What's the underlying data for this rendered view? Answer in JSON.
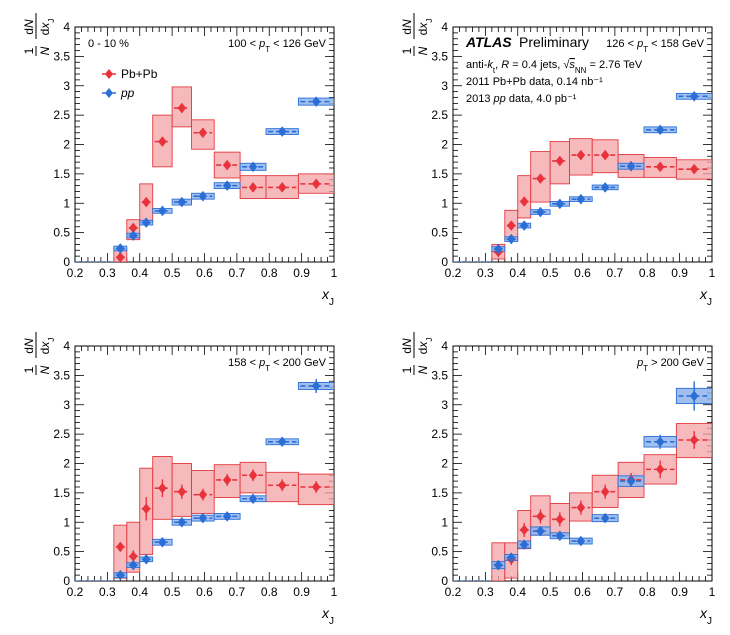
{
  "colors": {
    "pbpb": "#e8323c",
    "pbpb_box_fill": "#f4a3a6",
    "pbpb_box_stroke": "#e23a40",
    "pp": "#2b6fd6",
    "pp_box_fill": "#8fb4ec",
    "pp_box_stroke": "#2b6fd6"
  },
  "chart_data": [
    {
      "type": "scatter",
      "panel": "top-left",
      "xlabel": "x_J",
      "ylabel": "1/N dN/dx_J",
      "xlim": [
        0.2,
        1.0
      ],
      "ylim": [
        0,
        4
      ],
      "xticks": [
        "0.2",
        "0.3",
        "0.4",
        "0.5",
        "0.6",
        "0.7",
        "0.8",
        "0.9",
        "1"
      ],
      "yticks": [
        "0",
        "0.5",
        "1",
        "1.5",
        "2",
        "2.5",
        "3",
        "3.5",
        "4"
      ],
      "label_left": "0 - 10 %",
      "label_right": "100 < p_T < 126 GeV",
      "legend": [
        "Pb+Pb",
        "pp"
      ],
      "legend_position": "upper-left",
      "bin_edges": [
        0.32,
        0.36,
        0.4,
        0.44,
        0.5,
        0.56,
        0.63,
        0.71,
        0.79,
        0.89,
        1.0
      ],
      "series": [
        {
          "name": "Pb+Pb",
          "x": [
            0.34,
            0.38,
            0.42,
            0.47,
            0.53,
            0.595,
            0.67,
            0.75,
            0.84,
            0.945
          ],
          "y": [
            0.08,
            0.58,
            1.02,
            2.05,
            2.62,
            2.2,
            1.65,
            1.27,
            1.27,
            1.33
          ],
          "err": [
            0.03,
            0.06,
            0.06,
            0.07,
            0.08,
            0.07,
            0.05,
            0.05,
            0.05,
            0.05
          ],
          "sys_low": [
            0.0,
            0.38,
            0.68,
            1.62,
            2.3,
            1.92,
            1.43,
            1.08,
            1.08,
            1.17
          ],
          "sys_high": [
            0.22,
            0.72,
            1.33,
            2.5,
            2.98,
            2.42,
            1.87,
            1.47,
            1.47,
            1.5
          ]
        },
        {
          "name": "pp",
          "x": [
            0.34,
            0.38,
            0.42,
            0.47,
            0.53,
            0.595,
            0.67,
            0.75,
            0.84,
            0.945
          ],
          "y": [
            0.23,
            0.45,
            0.67,
            0.87,
            1.02,
            1.12,
            1.3,
            1.62,
            2.22,
            2.73
          ],
          "err": [
            0.04,
            0.03,
            0.03,
            0.03,
            0.03,
            0.03,
            0.03,
            0.04,
            0.05,
            0.05
          ],
          "sys_low": [
            0.19,
            0.41,
            0.63,
            0.83,
            0.97,
            1.07,
            1.25,
            1.56,
            2.17,
            2.67
          ],
          "sys_high": [
            0.27,
            0.49,
            0.71,
            0.91,
            1.07,
            1.17,
            1.35,
            1.68,
            2.27,
            2.79
          ]
        }
      ]
    },
    {
      "type": "scatter",
      "panel": "top-right",
      "xlabel": "x_J",
      "ylabel": "1/N dN/dx_J",
      "xlim": [
        0.2,
        1.0
      ],
      "ylim": [
        0,
        4
      ],
      "xticks": [
        "0.2",
        "0.3",
        "0.4",
        "0.5",
        "0.6",
        "0.7",
        "0.8",
        "0.9",
        "1"
      ],
      "yticks": [
        "0",
        "0.5",
        "1",
        "1.5",
        "2",
        "2.5",
        "3",
        "3.5",
        "4"
      ],
      "atlas_label": "ATLAS",
      "atlas_suffix": "Preliminary",
      "label_right": "126 < p_T < 158 GeV",
      "info_lines": [
        "anti-k_t, R = 0.4 jets, √s_NN = 2.76 TeV",
        "2011 Pb+Pb data, 0.14 nb⁻¹",
        "2013 pp data, 4.0 pb⁻¹"
      ],
      "bin_edges": [
        0.32,
        0.36,
        0.4,
        0.44,
        0.5,
        0.56,
        0.63,
        0.71,
        0.79,
        0.89,
        1.0
      ],
      "series": [
        {
          "name": "Pb+Pb",
          "x": [
            0.34,
            0.38,
            0.42,
            0.47,
            0.53,
            0.595,
            0.67,
            0.75,
            0.84,
            0.945
          ],
          "y": [
            0.17,
            0.62,
            1.03,
            1.42,
            1.72,
            1.82,
            1.82,
            1.63,
            1.62,
            1.58
          ],
          "err": [
            0.03,
            0.05,
            0.05,
            0.05,
            0.05,
            0.05,
            0.05,
            0.04,
            0.04,
            0.05
          ],
          "sys_low": [
            0.05,
            0.38,
            0.75,
            1.02,
            1.33,
            1.48,
            1.52,
            1.44,
            1.44,
            1.41
          ],
          "sys_high": [
            0.3,
            0.88,
            1.47,
            1.88,
            2.05,
            2.1,
            2.08,
            1.83,
            1.78,
            1.74
          ]
        },
        {
          "name": "pp",
          "x": [
            0.34,
            0.38,
            0.42,
            0.47,
            0.53,
            0.595,
            0.67,
            0.75,
            0.84,
            0.945
          ],
          "y": [
            0.22,
            0.39,
            0.62,
            0.85,
            0.99,
            1.07,
            1.27,
            1.63,
            2.25,
            2.82
          ],
          "err": [
            0.03,
            0.03,
            0.03,
            0.03,
            0.03,
            0.03,
            0.03,
            0.04,
            0.04,
            0.05
          ],
          "sys_low": [
            0.18,
            0.35,
            0.58,
            0.81,
            0.95,
            1.03,
            1.23,
            1.58,
            2.2,
            2.77
          ],
          "sys_high": [
            0.26,
            0.43,
            0.66,
            0.89,
            1.03,
            1.11,
            1.31,
            1.68,
            2.3,
            2.87
          ]
        }
      ]
    },
    {
      "type": "scatter",
      "panel": "bottom-left",
      "xlabel": "x_J",
      "ylabel": "1/N dN/dx_J",
      "xlim": [
        0.2,
        1.0
      ],
      "ylim": [
        0,
        4
      ],
      "xticks": [
        "0.2",
        "0.3",
        "0.4",
        "0.5",
        "0.6",
        "0.7",
        "0.8",
        "0.9",
        "1"
      ],
      "yticks": [
        "0",
        "0.5",
        "1",
        "1.5",
        "2",
        "2.5",
        "3",
        "3.5",
        "4"
      ],
      "label_right": "158 < p_T < 200 GeV",
      "bin_edges": [
        0.32,
        0.36,
        0.4,
        0.44,
        0.5,
        0.56,
        0.63,
        0.71,
        0.79,
        0.89,
        1.0
      ],
      "series": [
        {
          "name": "Pb+Pb",
          "x": [
            0.34,
            0.38,
            0.42,
            0.47,
            0.53,
            0.595,
            0.67,
            0.75,
            0.84,
            0.945
          ],
          "y": [
            0.58,
            0.42,
            1.23,
            1.58,
            1.52,
            1.47,
            1.72,
            1.8,
            1.63,
            1.6
          ],
          "err": [
            0.08,
            0.1,
            0.2,
            0.15,
            0.12,
            0.1,
            0.1,
            0.1,
            0.1,
            0.1
          ],
          "sys_low": [
            0.05,
            0.15,
            0.45,
            1.05,
            1.1,
            1.15,
            1.42,
            1.5,
            1.35,
            1.3
          ],
          "sys_high": [
            0.95,
            1.0,
            1.92,
            2.12,
            2.0,
            1.88,
            1.98,
            2.02,
            1.85,
            1.82
          ]
        },
        {
          "name": "pp",
          "x": [
            0.34,
            0.38,
            0.42,
            0.47,
            0.53,
            0.595,
            0.67,
            0.75,
            0.84,
            0.945
          ],
          "y": [
            0.1,
            0.27,
            0.37,
            0.66,
            1.0,
            1.07,
            1.1,
            1.4,
            2.37,
            3.32
          ],
          "err": [
            0.03,
            0.03,
            0.04,
            0.04,
            0.04,
            0.04,
            0.04,
            0.05,
            0.05,
            0.12
          ],
          "sys_low": [
            0.06,
            0.23,
            0.33,
            0.61,
            0.95,
            1.02,
            1.05,
            1.35,
            2.32,
            3.26
          ],
          "sys_high": [
            0.14,
            0.31,
            0.41,
            0.71,
            1.05,
            1.12,
            1.15,
            1.45,
            2.42,
            3.38
          ]
        }
      ]
    },
    {
      "type": "scatter",
      "panel": "bottom-right",
      "xlabel": "x_J",
      "ylabel": "1/N dN/dx_J",
      "xlim": [
        0.2,
        1.0
      ],
      "ylim": [
        0,
        4
      ],
      "xticks": [
        "0.2",
        "0.3",
        "0.4",
        "0.5",
        "0.6",
        "0.7",
        "0.8",
        "0.9",
        "1"
      ],
      "yticks": [
        "0",
        "0.5",
        "1",
        "1.5",
        "2",
        "2.5",
        "3",
        "3.5",
        "4"
      ],
      "label_right": "p_T > 200 GeV",
      "bin_edges": [
        0.32,
        0.36,
        0.4,
        0.44,
        0.5,
        0.56,
        0.63,
        0.71,
        0.79,
        0.89,
        1.0
      ],
      "series": [
        {
          "name": "Pb+Pb",
          "x": [
            0.34,
            0.38,
            0.42,
            0.47,
            0.53,
            0.595,
            0.67,
            0.75,
            0.84,
            0.945
          ],
          "y": [
            0.27,
            0.37,
            0.87,
            1.1,
            1.05,
            1.25,
            1.52,
            1.72,
            1.9,
            2.4
          ],
          "err": [
            0.08,
            0.1,
            0.12,
            0.12,
            0.12,
            0.12,
            0.12,
            0.12,
            0.15,
            0.15
          ],
          "sys_low": [
            0.0,
            0.05,
            0.55,
            0.78,
            0.78,
            1.02,
            1.25,
            1.42,
            1.65,
            2.1
          ],
          "sys_high": [
            0.65,
            0.65,
            1.2,
            1.45,
            1.32,
            1.5,
            1.8,
            2.02,
            2.15,
            2.68
          ]
        },
        {
          "name": "pp",
          "x": [
            0.34,
            0.38,
            0.42,
            0.47,
            0.53,
            0.595,
            0.67,
            0.75,
            0.84,
            0.945
          ],
          "y": [
            0.27,
            0.4,
            0.62,
            0.85,
            0.77,
            0.68,
            1.07,
            1.7,
            2.37,
            3.15
          ],
          "err": [
            0.05,
            0.05,
            0.06,
            0.08,
            0.06,
            0.05,
            0.06,
            0.1,
            0.12,
            0.25
          ],
          "sys_low": [
            0.21,
            0.35,
            0.56,
            0.78,
            0.72,
            0.63,
            1.01,
            1.61,
            2.28,
            3.02
          ],
          "sys_high": [
            0.33,
            0.45,
            0.68,
            0.92,
            0.82,
            0.73,
            1.13,
            1.79,
            2.46,
            3.28
          ]
        }
      ]
    }
  ]
}
